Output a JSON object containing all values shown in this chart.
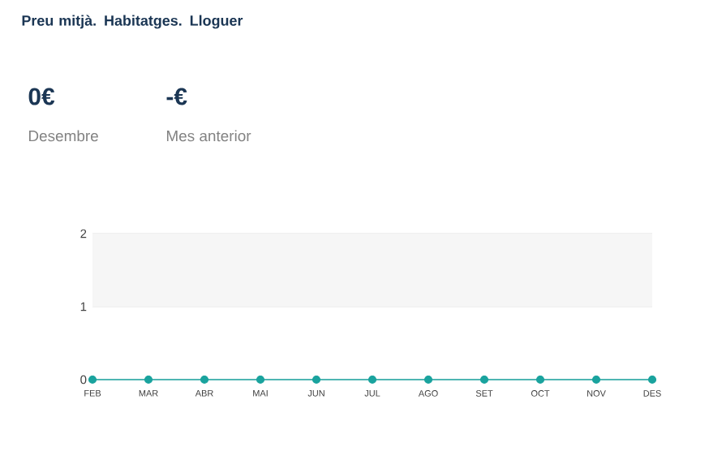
{
  "chart_data": {
    "type": "line",
    "title": "Preu mitjà. Habitatges. Lloguer",
    "annotations": [
      "0€",
      "Desembre",
      "-€",
      "Mes anterior"
    ],
    "categories": [
      "FEB",
      "MAR",
      "ABR",
      "MAI",
      "JUN",
      "JUL",
      "AGO",
      "SET",
      "OCT",
      "NOV",
      "DES"
    ],
    "series": [
      {
        "color": "#1aa39e",
        "values": [
          0,
          0,
          0,
          0,
          0,
          0,
          0,
          0,
          0,
          0,
          0
        ]
      }
    ],
    "ylim": [
      0,
      2
    ],
    "yticks": [
      0,
      1,
      2
    ],
    "grid": "y",
    "marker": "circle",
    "line_style": "solid",
    "bands": [
      {
        "axis": "y",
        "from": 1,
        "to": 2,
        "color": "#f6f6f6"
      }
    ]
  }
}
